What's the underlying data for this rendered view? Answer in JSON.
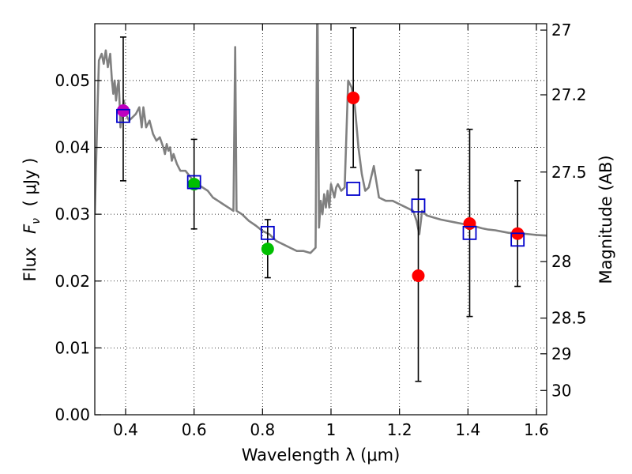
{
  "chart_data": {
    "type": "scatter",
    "xlabel": "Wavelength  λ (μm)",
    "ylabel": "Flux  F_ν  ( μJy )",
    "ylabel_flux": "Flux",
    "ylabel_fnu": "F",
    "ylabel_nu": "ν",
    "ylabel_unit": "( μJy )",
    "y2label": "Magnitude (AB)",
    "xlim": [
      0.31,
      1.63
    ],
    "ylim": [
      0.0,
      0.0585
    ],
    "xticks": [
      0.4,
      0.6,
      0.8,
      1.0,
      1.2,
      1.4,
      1.6
    ],
    "xtick_labels": [
      "0.4",
      "0.6",
      "0.8",
      "1",
      "1.2",
      "1.4",
      "1.6"
    ],
    "yticks": [
      0.0,
      0.01,
      0.02,
      0.03,
      0.04,
      0.05
    ],
    "ytick_labels": [
      "0.00",
      "0.01",
      "0.02",
      "0.03",
      "0.04",
      "0.05"
    ],
    "y2ticks": [
      27,
      27.2,
      27.5,
      28,
      28.5,
      29,
      30
    ],
    "y2tick_labels": [
      "27",
      "27.2",
      "27.5",
      "28",
      "28.5",
      "29",
      "30"
    ],
    "grid": true,
    "colors": {
      "model": "#808080",
      "model_points": "#0000cc",
      "errorbar": "#000000"
    },
    "model_sed": [
      [
        0.31,
        0.03
      ],
      [
        0.318,
        0.046
      ],
      [
        0.322,
        0.053
      ],
      [
        0.33,
        0.054
      ],
      [
        0.336,
        0.0525
      ],
      [
        0.342,
        0.0545
      ],
      [
        0.348,
        0.052
      ],
      [
        0.355,
        0.054
      ],
      [
        0.36,
        0.05
      ],
      [
        0.364,
        0.048
      ],
      [
        0.368,
        0.05
      ],
      [
        0.372,
        0.047
      ],
      [
        0.376,
        0.049
      ],
      [
        0.38,
        0.05
      ],
      [
        0.385,
        0.043
      ],
      [
        0.39,
        0.0455
      ],
      [
        0.395,
        0.047
      ],
      [
        0.4,
        0.045
      ],
      [
        0.41,
        0.044
      ],
      [
        0.42,
        0.0445
      ],
      [
        0.43,
        0.045
      ],
      [
        0.44,
        0.046
      ],
      [
        0.447,
        0.043
      ],
      [
        0.452,
        0.046
      ],
      [
        0.46,
        0.043
      ],
      [
        0.47,
        0.044
      ],
      [
        0.48,
        0.042
      ],
      [
        0.49,
        0.041
      ],
      [
        0.5,
        0.0415
      ],
      [
        0.51,
        0.04
      ],
      [
        0.515,
        0.039
      ],
      [
        0.52,
        0.0405
      ],
      [
        0.525,
        0.0395
      ],
      [
        0.53,
        0.04
      ],
      [
        0.535,
        0.038
      ],
      [
        0.54,
        0.039
      ],
      [
        0.55,
        0.0375
      ],
      [
        0.56,
        0.0365
      ],
      [
        0.575,
        0.0365
      ],
      [
        0.59,
        0.0355
      ],
      [
        0.6,
        0.035
      ],
      [
        0.61,
        0.0345
      ],
      [
        0.625,
        0.034
      ],
      [
        0.64,
        0.0335
      ],
      [
        0.655,
        0.0325
      ],
      [
        0.67,
        0.032
      ],
      [
        0.685,
        0.0315
      ],
      [
        0.7,
        0.031
      ],
      [
        0.715,
        0.0305
      ],
      [
        0.72,
        0.055
      ],
      [
        0.724,
        0.0305
      ],
      [
        0.74,
        0.03
      ],
      [
        0.76,
        0.029
      ],
      [
        0.78,
        0.0283
      ],
      [
        0.8,
        0.0275
      ],
      [
        0.82,
        0.027
      ],
      [
        0.84,
        0.026
      ],
      [
        0.86,
        0.0255
      ],
      [
        0.88,
        0.025
      ],
      [
        0.9,
        0.0245
      ],
      [
        0.92,
        0.0245
      ],
      [
        0.94,
        0.0242
      ],
      [
        0.955,
        0.025
      ],
      [
        0.96,
        0.065
      ],
      [
        0.965,
        0.028
      ],
      [
        0.97,
        0.032
      ],
      [
        0.975,
        0.03
      ],
      [
        0.98,
        0.033
      ],
      [
        0.985,
        0.031
      ],
      [
        0.99,
        0.0335
      ],
      [
        0.995,
        0.031
      ],
      [
        1.0,
        0.0345
      ],
      [
        1.01,
        0.0325
      ],
      [
        1.015,
        0.034
      ],
      [
        1.02,
        0.0345
      ],
      [
        1.03,
        0.0335
      ],
      [
        1.04,
        0.034
      ],
      [
        1.05,
        0.05
      ],
      [
        1.06,
        0.049
      ],
      [
        1.07,
        0.046
      ],
      [
        1.08,
        0.04
      ],
      [
        1.09,
        0.036
      ],
      [
        1.1,
        0.0335
      ],
      [
        1.11,
        0.034
      ],
      [
        1.125,
        0.0372
      ],
      [
        1.14,
        0.0325
      ],
      [
        1.16,
        0.032
      ],
      [
        1.18,
        0.032
      ],
      [
        1.2,
        0.0315
      ],
      [
        1.22,
        0.031
      ],
      [
        1.24,
        0.0305
      ],
      [
        1.25,
        0.029
      ],
      [
        1.258,
        0.027
      ],
      [
        1.266,
        0.0305
      ],
      [
        1.28,
        0.0298
      ],
      [
        1.3,
        0.0295
      ],
      [
        1.32,
        0.0292
      ],
      [
        1.34,
        0.029
      ],
      [
        1.36,
        0.0288
      ],
      [
        1.38,
        0.0286
      ],
      [
        1.4,
        0.0284
      ],
      [
        1.42,
        0.0282
      ],
      [
        1.44,
        0.0279
      ],
      [
        1.46,
        0.0277
      ],
      [
        1.48,
        0.0276
      ],
      [
        1.5,
        0.0274
      ],
      [
        1.52,
        0.0272
      ],
      [
        1.54,
        0.0272
      ],
      [
        1.56,
        0.0271
      ],
      [
        1.58,
        0.027
      ],
      [
        1.6,
        0.0269
      ],
      [
        1.63,
        0.0268
      ]
    ],
    "model_points": {
      "x": [
        0.393,
        0.6,
        0.815,
        1.065,
        1.255,
        1.405,
        1.545
      ],
      "y": [
        0.0447,
        0.0348,
        0.0272,
        0.0338,
        0.0313,
        0.0272,
        0.0262
      ]
    },
    "observed": [
      {
        "x": 0.393,
        "y": 0.0455,
        "err_low": 0.035,
        "err_high": 0.0565,
        "color": "#bf00bf"
      },
      {
        "x": 0.6,
        "y": 0.0345,
        "err_low": 0.0278,
        "err_high": 0.0412,
        "color": "#00bf00"
      },
      {
        "x": 0.815,
        "y": 0.0248,
        "err_low": 0.0205,
        "err_high": 0.0292,
        "color": "#00bf00"
      },
      {
        "x": 1.065,
        "y": 0.0474,
        "err_low": 0.037,
        "err_high": 0.0579,
        "color": "#ff0000"
      },
      {
        "x": 1.255,
        "y": 0.0208,
        "err_low": 0.005,
        "err_high": 0.0366,
        "color": "#ff0000"
      },
      {
        "x": 1.405,
        "y": 0.0286,
        "err_low": 0.0147,
        "err_high": 0.0427,
        "color": "#ff0000"
      },
      {
        "x": 1.545,
        "y": 0.0271,
        "err_low": 0.0192,
        "err_high": 0.035,
        "color": "#ff0000"
      }
    ]
  }
}
